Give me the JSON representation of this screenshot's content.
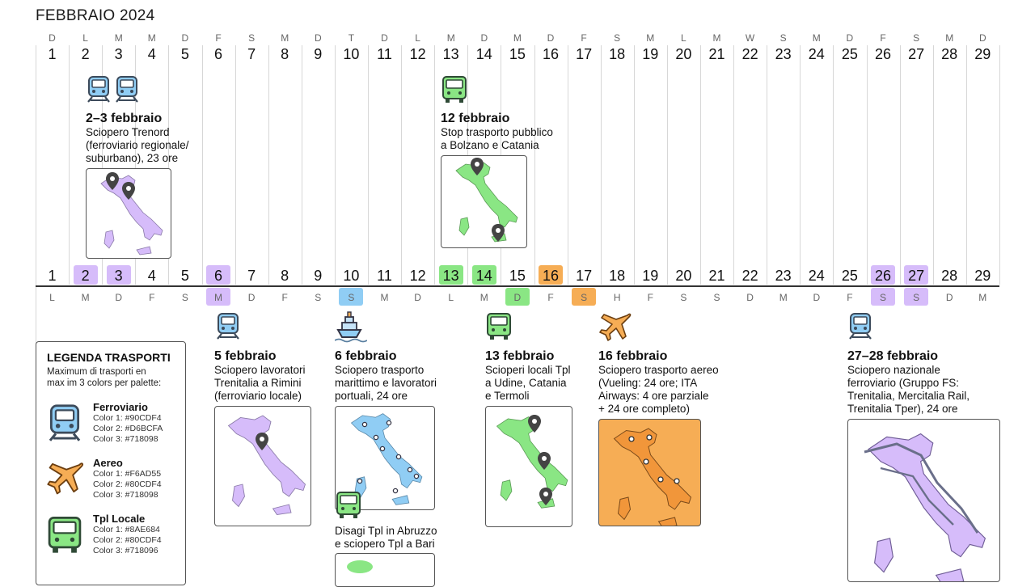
{
  "title": "FEBBRAIO 2024",
  "top_weekdays": [
    "D",
    "L",
    "M",
    "M",
    "D",
    "F",
    "S",
    "M",
    "D",
    "T",
    "D",
    "L",
    "M",
    "D",
    "M",
    "D",
    "F",
    "S",
    "M",
    "L",
    "M",
    "W",
    "S",
    "M",
    "D",
    "F",
    "S",
    "M",
    "D"
  ],
  "days": [
    "1",
    "2",
    "3",
    "4",
    "5",
    "6",
    "7",
    "8",
    "9",
    "10",
    "11",
    "12",
    "13",
    "14",
    "15",
    "16",
    "17",
    "18",
    "19",
    "20",
    "21",
    "22",
    "23",
    "24",
    "25",
    "26",
    "27",
    "28",
    "29"
  ],
  "mid_weekdays": [
    "L",
    "M",
    "D",
    "F",
    "S",
    "M",
    "D",
    "F",
    "S",
    "S",
    "M",
    "D",
    "L",
    "M",
    "D",
    "F",
    "S",
    "H",
    "F",
    "S",
    "S",
    "D",
    "M",
    "D",
    "F",
    "S",
    "S",
    "D",
    "M"
  ],
  "highlights": {
    "rail": "#D6BCFA",
    "tpl": "#8AE684",
    "sea": "#90CDF4",
    "air": "#F6AD55"
  },
  "events": {
    "e1": {
      "date": "2–3 febbraio",
      "desc": "Sciopero Trenord\n(ferroviario regionale/\nsuburbano), 23 ore"
    },
    "e2": {
      "date": "12 febbraio",
      "desc": "Stop trasporto pubblico\na Bolzano e Catania"
    },
    "e3": {
      "date": "5 febbraio",
      "desc": "Sciopero lavoratori\nTrenitalia a Rimini\n(ferroviario locale)"
    },
    "e4": {
      "date": "6 febbraio",
      "desc": "Sciopero trasporto\nmarittimo e lavoratori\nportuali, 24 ore"
    },
    "e4b": {
      "desc": "Disagi Tpl in Abruzzo\ne sciopero Tpl a Bari"
    },
    "e5": {
      "date": "13 febbraio",
      "desc": "Scioperi locali Tpl\na Udine, Catania\ne Termoli"
    },
    "e6": {
      "date": "16 febbraio",
      "desc": "Sciopero trasporto aereo\n(Vueling: 24 ore; ITA\nAirways: 4 ore parziale\n+ 24 ore completo)"
    },
    "e7": {
      "date": "27–28 febbraio",
      "desc": "Sciopero nazionale\nferroviario (Gruppo FS:\nTrenitalia, Mercitalia Rail,\nTrenitalia Tper), 24 ore"
    }
  },
  "legend": {
    "title": "LEGENDA TRASPORTI",
    "subtitle": "Maximum di trasporti en\nmax im 3 colors per palette:",
    "items": [
      {
        "name": "Ferroviario",
        "c1": "Color 1: #90CDF4",
        "c2": "Color 2: #D6BCFA",
        "c3": "Color 3: #718098"
      },
      {
        "name": "Aereo",
        "c1": "Color 1: #F6AD55",
        "c2": "Color 2: #80CDF4",
        "c3": "Color 3: #718098"
      },
      {
        "name": "Tpl Locale",
        "c1": "Color 1: #8AE684",
        "c2": "Color 2: #80CDF4",
        "c3": "Color 3: #718096"
      }
    ]
  },
  "icons": [
    "train-icon",
    "bus-icon",
    "ship-icon",
    "plane-icon",
    "map-pin-icon"
  ]
}
